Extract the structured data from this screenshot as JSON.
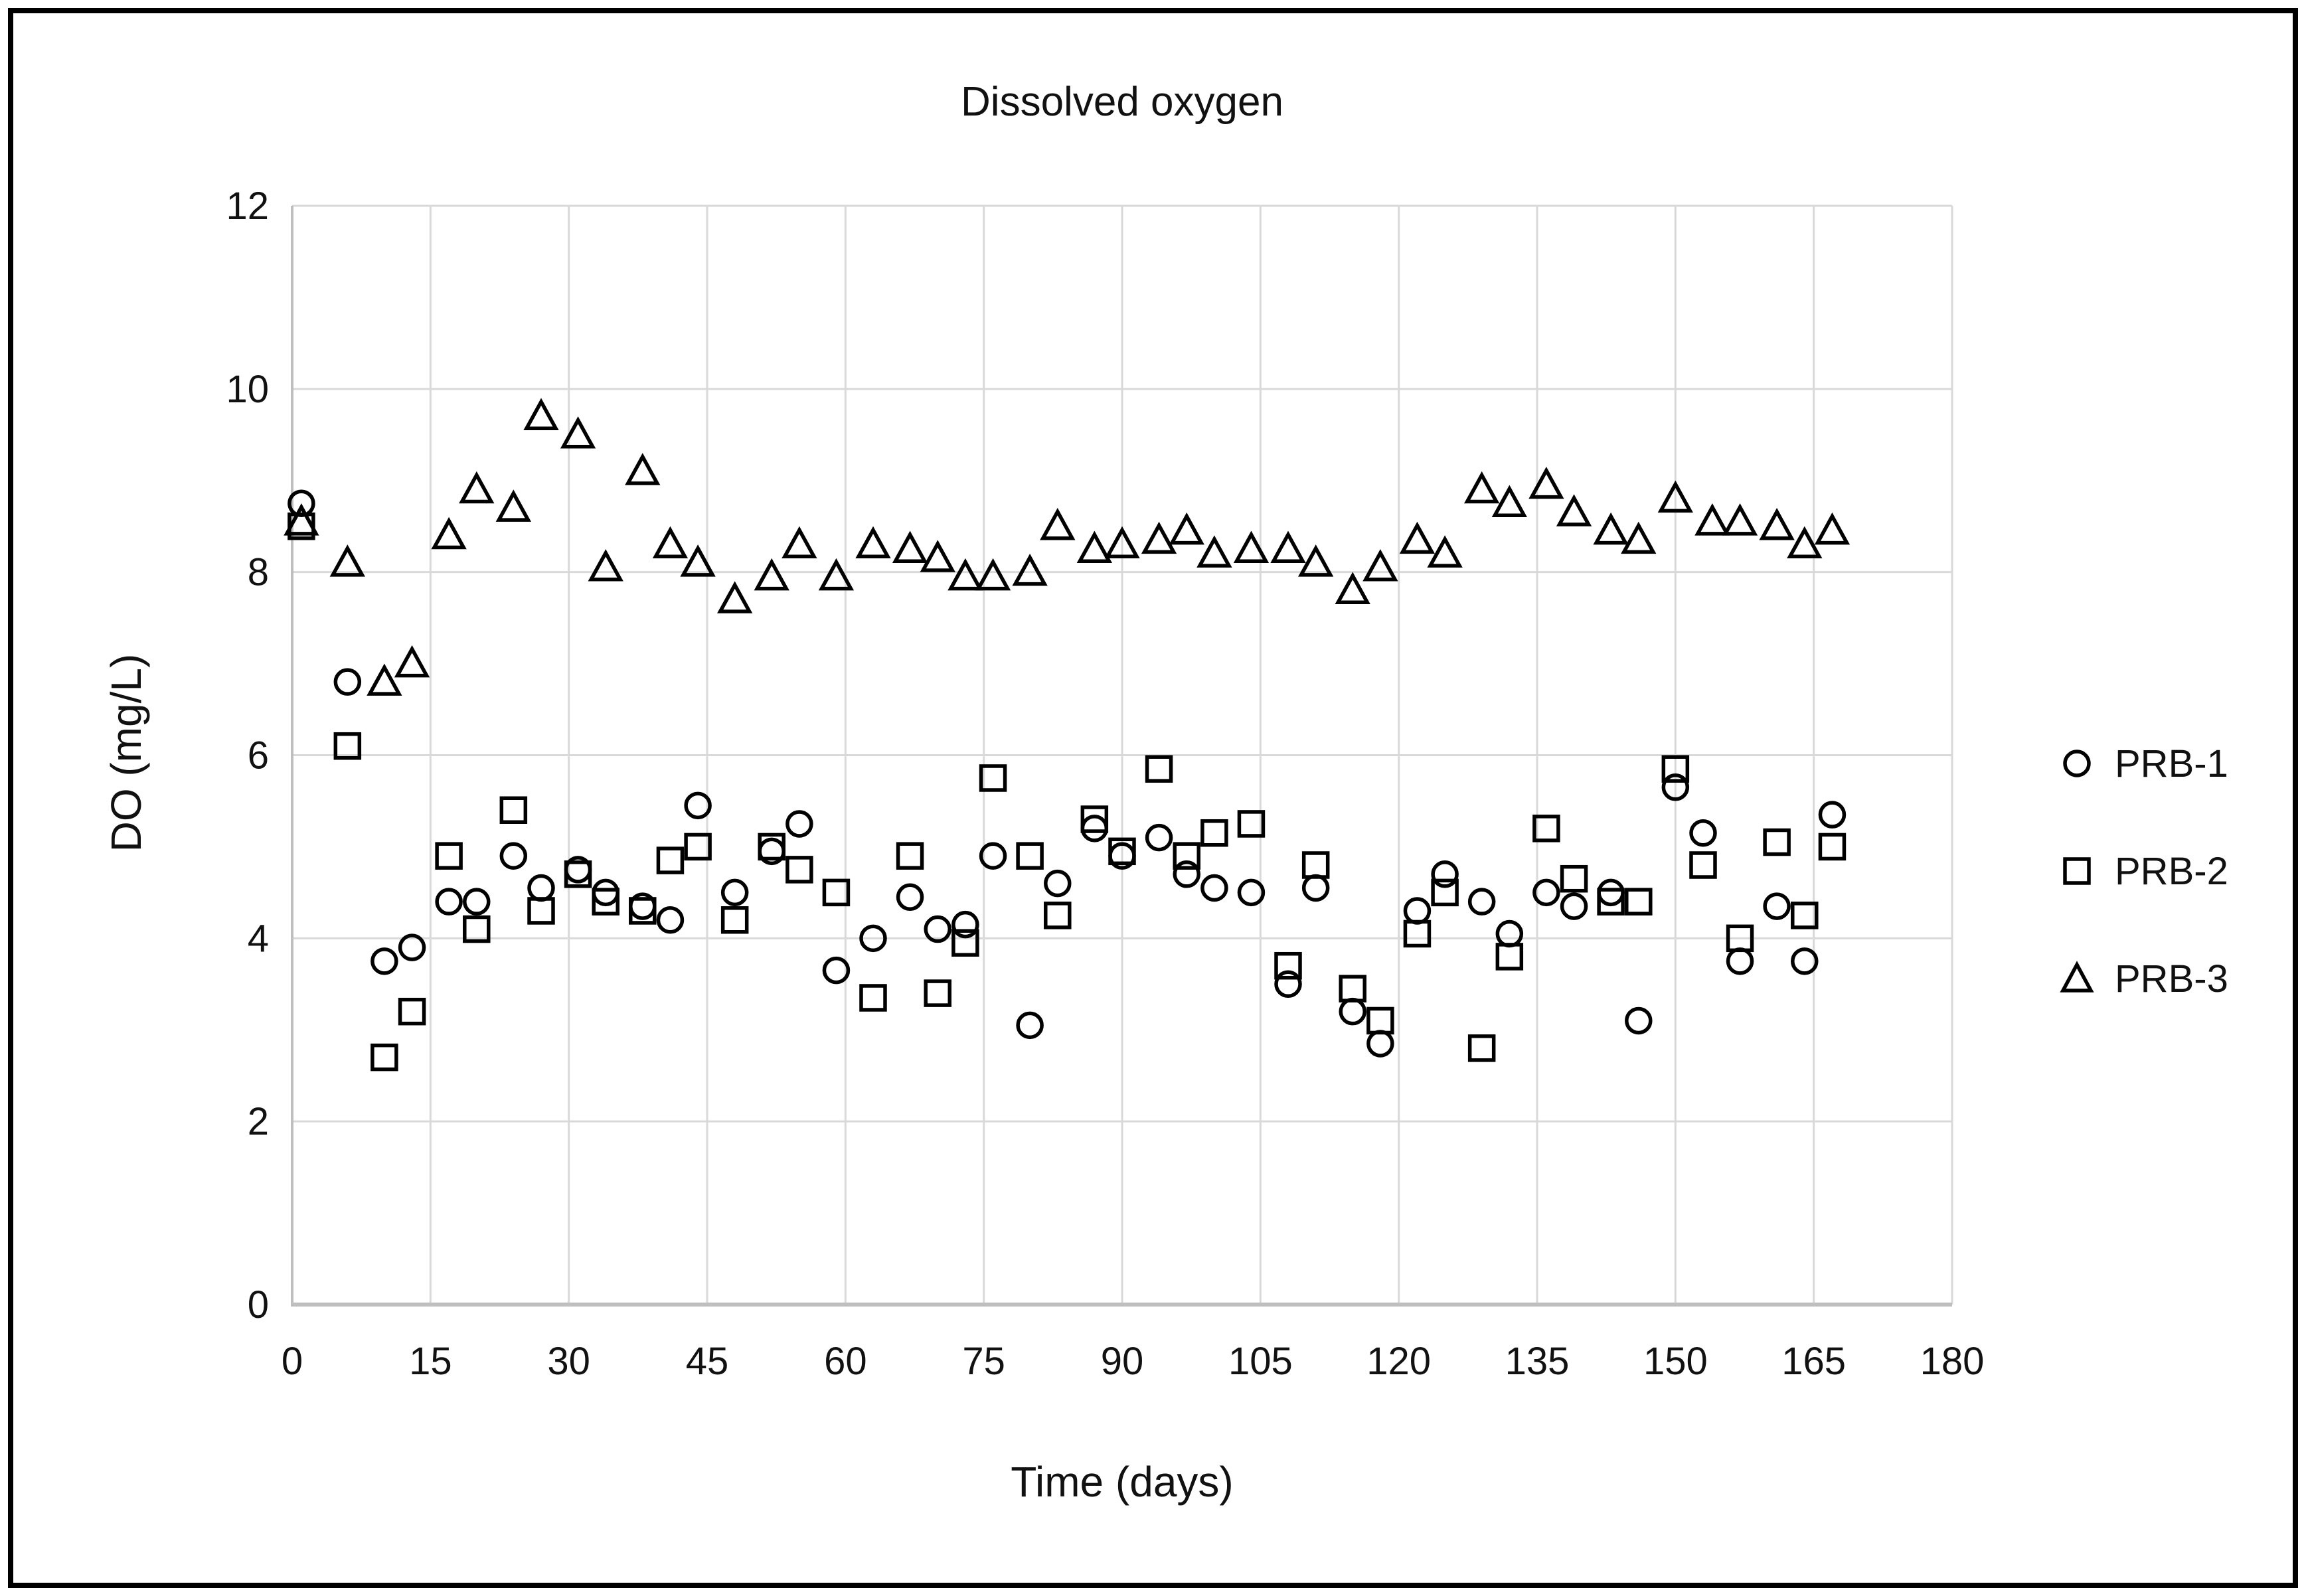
{
  "chart_data": {
    "type": "scatter",
    "title": "Dissolved oxygen",
    "xlabel": "Time (days)",
    "ylabel": "DO (mg/L)",
    "xlim": [
      0,
      180
    ],
    "ylim": [
      0,
      12
    ],
    "x_ticks": [
      0,
      15,
      30,
      45,
      60,
      75,
      90,
      105,
      120,
      135,
      150,
      165,
      180
    ],
    "y_ticks": [
      0,
      2,
      4,
      6,
      8,
      10,
      12
    ],
    "grid": true,
    "legend_position": "right-middle",
    "colors": {
      "marker": "#000000",
      "gridline": "#d9d9d9",
      "axis_line": "#bfbfbf",
      "text": "#111111"
    },
    "series": [
      {
        "name": "PRB-1",
        "marker": "circle",
        "points": [
          [
            1,
            8.75
          ],
          [
            6,
            6.8
          ],
          [
            10,
            3.75
          ],
          [
            13,
            3.9
          ],
          [
            17,
            4.4
          ],
          [
            20,
            4.4
          ],
          [
            24,
            4.9
          ],
          [
            27,
            4.55
          ],
          [
            31,
            4.75
          ],
          [
            34,
            4.5
          ],
          [
            38,
            4.35
          ],
          [
            41,
            4.2
          ],
          [
            44,
            5.45
          ],
          [
            48,
            4.5
          ],
          [
            52,
            4.95
          ],
          [
            55,
            5.25
          ],
          [
            59,
            3.65
          ],
          [
            63,
            4.0
          ],
          [
            67,
            4.45
          ],
          [
            70,
            4.1
          ],
          [
            73,
            4.15
          ],
          [
            76,
            4.9
          ],
          [
            80,
            3.05
          ],
          [
            83,
            4.6
          ],
          [
            87,
            5.2
          ],
          [
            90,
            4.9
          ],
          [
            94,
            5.1
          ],
          [
            97,
            4.7
          ],
          [
            100,
            4.55
          ],
          [
            104,
            4.5
          ],
          [
            108,
            3.5
          ],
          [
            111,
            4.55
          ],
          [
            115,
            3.2
          ],
          [
            118,
            2.85
          ],
          [
            122,
            4.3
          ],
          [
            125,
            4.7
          ],
          [
            129,
            4.4
          ],
          [
            132,
            4.05
          ],
          [
            136,
            4.5
          ],
          [
            139,
            4.35
          ],
          [
            143,
            4.5
          ],
          [
            146,
            3.1
          ],
          [
            150,
            5.65
          ],
          [
            153,
            5.15
          ],
          [
            157,
            3.75
          ],
          [
            161,
            4.35
          ],
          [
            164,
            3.75
          ],
          [
            167,
            5.35
          ]
        ]
      },
      {
        "name": "PRB-2",
        "marker": "square",
        "points": [
          [
            1,
            8.5
          ],
          [
            6,
            6.1
          ],
          [
            10,
            2.7
          ],
          [
            13,
            3.2
          ],
          [
            17,
            4.9
          ],
          [
            20,
            4.1
          ],
          [
            24,
            5.4
          ],
          [
            27,
            4.3
          ],
          [
            31,
            4.7
          ],
          [
            34,
            4.4
          ],
          [
            38,
            4.3
          ],
          [
            41,
            4.85
          ],
          [
            44,
            5.0
          ],
          [
            48,
            4.2
          ],
          [
            52,
            5.0
          ],
          [
            55,
            4.75
          ],
          [
            59,
            4.5
          ],
          [
            63,
            3.35
          ],
          [
            67,
            4.9
          ],
          [
            70,
            3.4
          ],
          [
            73,
            3.95
          ],
          [
            76,
            5.75
          ],
          [
            80,
            4.9
          ],
          [
            83,
            4.25
          ],
          [
            87,
            5.3
          ],
          [
            90,
            4.95
          ],
          [
            94,
            5.85
          ],
          [
            97,
            4.9
          ],
          [
            100,
            5.15
          ],
          [
            104,
            5.25
          ],
          [
            108,
            3.7
          ],
          [
            111,
            4.8
          ],
          [
            115,
            3.45
          ],
          [
            118,
            3.1
          ],
          [
            122,
            4.05
          ],
          [
            125,
            4.5
          ],
          [
            129,
            2.8
          ],
          [
            132,
            3.8
          ],
          [
            136,
            5.2
          ],
          [
            139,
            4.65
          ],
          [
            143,
            4.4
          ],
          [
            146,
            4.4
          ],
          [
            150,
            5.85
          ],
          [
            153,
            4.8
          ],
          [
            157,
            4.0
          ],
          [
            161,
            5.05
          ],
          [
            164,
            4.25
          ],
          [
            167,
            5.0
          ]
        ]
      },
      {
        "name": "PRB-3",
        "marker": "triangle",
        "points": [
          [
            1,
            8.55
          ],
          [
            6,
            8.1
          ],
          [
            10,
            6.8
          ],
          [
            13,
            7.0
          ],
          [
            17,
            8.4
          ],
          [
            20,
            8.9
          ],
          [
            24,
            8.7
          ],
          [
            27,
            9.7
          ],
          [
            31,
            9.5
          ],
          [
            34,
            8.05
          ],
          [
            38,
            9.1
          ],
          [
            41,
            8.3
          ],
          [
            44,
            8.1
          ],
          [
            48,
            7.7
          ],
          [
            52,
            7.95
          ],
          [
            55,
            8.3
          ],
          [
            59,
            7.95
          ],
          [
            63,
            8.3
          ],
          [
            67,
            8.25
          ],
          [
            70,
            8.15
          ],
          [
            73,
            7.95
          ],
          [
            76,
            7.95
          ],
          [
            80,
            8.0
          ],
          [
            83,
            8.5
          ],
          [
            87,
            8.25
          ],
          [
            90,
            8.3
          ],
          [
            94,
            8.35
          ],
          [
            97,
            8.45
          ],
          [
            100,
            8.2
          ],
          [
            104,
            8.25
          ],
          [
            108,
            8.25
          ],
          [
            111,
            8.1
          ],
          [
            115,
            7.8
          ],
          [
            118,
            8.05
          ],
          [
            122,
            8.35
          ],
          [
            125,
            8.2
          ],
          [
            129,
            8.9
          ],
          [
            132,
            8.75
          ],
          [
            136,
            8.95
          ],
          [
            139,
            8.65
          ],
          [
            143,
            8.45
          ],
          [
            146,
            8.35
          ],
          [
            150,
            8.8
          ],
          [
            154,
            8.55
          ],
          [
            157,
            8.55
          ],
          [
            161,
            8.5
          ],
          [
            164,
            8.3
          ],
          [
            167,
            8.45
          ]
        ]
      }
    ]
  }
}
